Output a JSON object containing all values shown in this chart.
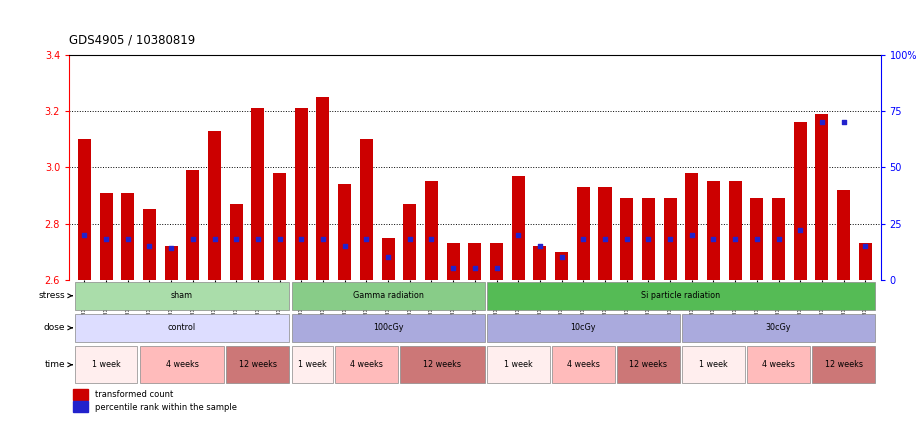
{
  "title": "GDS4905 / 10380819",
  "samples": [
    "GSM1176963",
    "GSM1176964",
    "GSM1176965",
    "GSM1176975",
    "GSM1176976",
    "GSM1176977",
    "GSM1176978",
    "GSM1176988",
    "GSM1176989",
    "GSM1176990",
    "GSM1176954",
    "GSM1176955",
    "GSM1176956",
    "GSM1176966",
    "GSM1176967",
    "GSM1176968",
    "GSM1176979",
    "GSM1176980",
    "GSM1176981",
    "GSM1176960",
    "GSM1176961",
    "GSM1176962",
    "GSM1176972",
    "GSM1176973",
    "GSM1176974",
    "GSM1176985",
    "GSM1176986",
    "GSM1176987",
    "GSM1176957",
    "GSM1176958",
    "GSM1176959",
    "GSM1176969",
    "GSM1176970",
    "GSM1176971",
    "GSM1176982",
    "GSM1176983",
    "GSM1176984"
  ],
  "red_values": [
    3.1,
    2.91,
    2.91,
    2.85,
    2.72,
    2.99,
    3.13,
    2.87,
    3.21,
    2.98,
    3.21,
    3.25,
    2.94,
    3.1,
    2.75,
    2.87,
    2.95,
    2.73,
    2.73,
    2.73,
    2.97,
    2.72,
    2.7,
    2.93,
    2.93,
    2.89,
    2.89,
    2.89,
    2.98,
    2.95,
    2.95,
    2.89,
    2.89,
    3.16,
    3.19,
    2.92,
    2.73
  ],
  "blue_values": [
    20,
    18,
    18,
    15,
    14,
    18,
    18,
    18,
    18,
    18,
    18,
    18,
    15,
    18,
    10,
    18,
    18,
    5,
    5,
    5,
    20,
    15,
    10,
    18,
    18,
    18,
    18,
    18,
    20,
    18,
    18,
    18,
    18,
    22,
    70,
    70,
    15
  ],
  "ylim_left": [
    2.6,
    3.4
  ],
  "ylim_right": [
    0,
    100
  ],
  "yticks_left": [
    2.6,
    2.8,
    3.0,
    3.2,
    3.4
  ],
  "yticks_right": [
    0,
    25,
    50,
    75,
    100
  ],
  "bar_color": "#cc0000",
  "blue_color": "#2222cc",
  "stress_groups": [
    {
      "label": "sham",
      "start": 0,
      "end": 10,
      "color": "#aaddaa"
    },
    {
      "label": "Gamma radiation",
      "start": 10,
      "end": 19,
      "color": "#88cc88"
    },
    {
      "label": "Si particle radiation",
      "start": 19,
      "end": 37,
      "color": "#55bb55"
    }
  ],
  "dose_groups": [
    {
      "label": "control",
      "start": 0,
      "end": 10,
      "color": "#ddddff"
    },
    {
      "label": "100cGy",
      "start": 10,
      "end": 19,
      "color": "#aaaadd"
    },
    {
      "label": "10cGy",
      "start": 19,
      "end": 28,
      "color": "#aaaadd"
    },
    {
      "label": "30cGy",
      "start": 28,
      "end": 37,
      "color": "#aaaadd"
    }
  ],
  "time_groups": [
    {
      "label": "1 week",
      "start": 0,
      "end": 3,
      "color": "#ffeeee"
    },
    {
      "label": "4 weeks",
      "start": 3,
      "end": 7,
      "color": "#ffbbbb"
    },
    {
      "label": "12 weeks",
      "start": 7,
      "end": 10,
      "color": "#cc7777"
    },
    {
      "label": "1 week",
      "start": 10,
      "end": 12,
      "color": "#ffeeee"
    },
    {
      "label": "4 weeks",
      "start": 12,
      "end": 15,
      "color": "#ffbbbb"
    },
    {
      "label": "12 weeks",
      "start": 15,
      "end": 19,
      "color": "#cc7777"
    },
    {
      "label": "1 week",
      "start": 19,
      "end": 22,
      "color": "#ffeeee"
    },
    {
      "label": "4 weeks",
      "start": 22,
      "end": 25,
      "color": "#ffbbbb"
    },
    {
      "label": "12 weeks",
      "start": 25,
      "end": 28,
      "color": "#cc7777"
    },
    {
      "label": "1 week",
      "start": 28,
      "end": 31,
      "color": "#ffeeee"
    },
    {
      "label": "4 weeks",
      "start": 31,
      "end": 34,
      "color": "#ffbbbb"
    },
    {
      "label": "12 weeks",
      "start": 34,
      "end": 37,
      "color": "#cc7777"
    }
  ],
  "legend_items": [
    {
      "label": "transformed count",
      "color": "#cc0000"
    },
    {
      "label": "percentile rank within the sample",
      "color": "#2222cc"
    }
  ]
}
